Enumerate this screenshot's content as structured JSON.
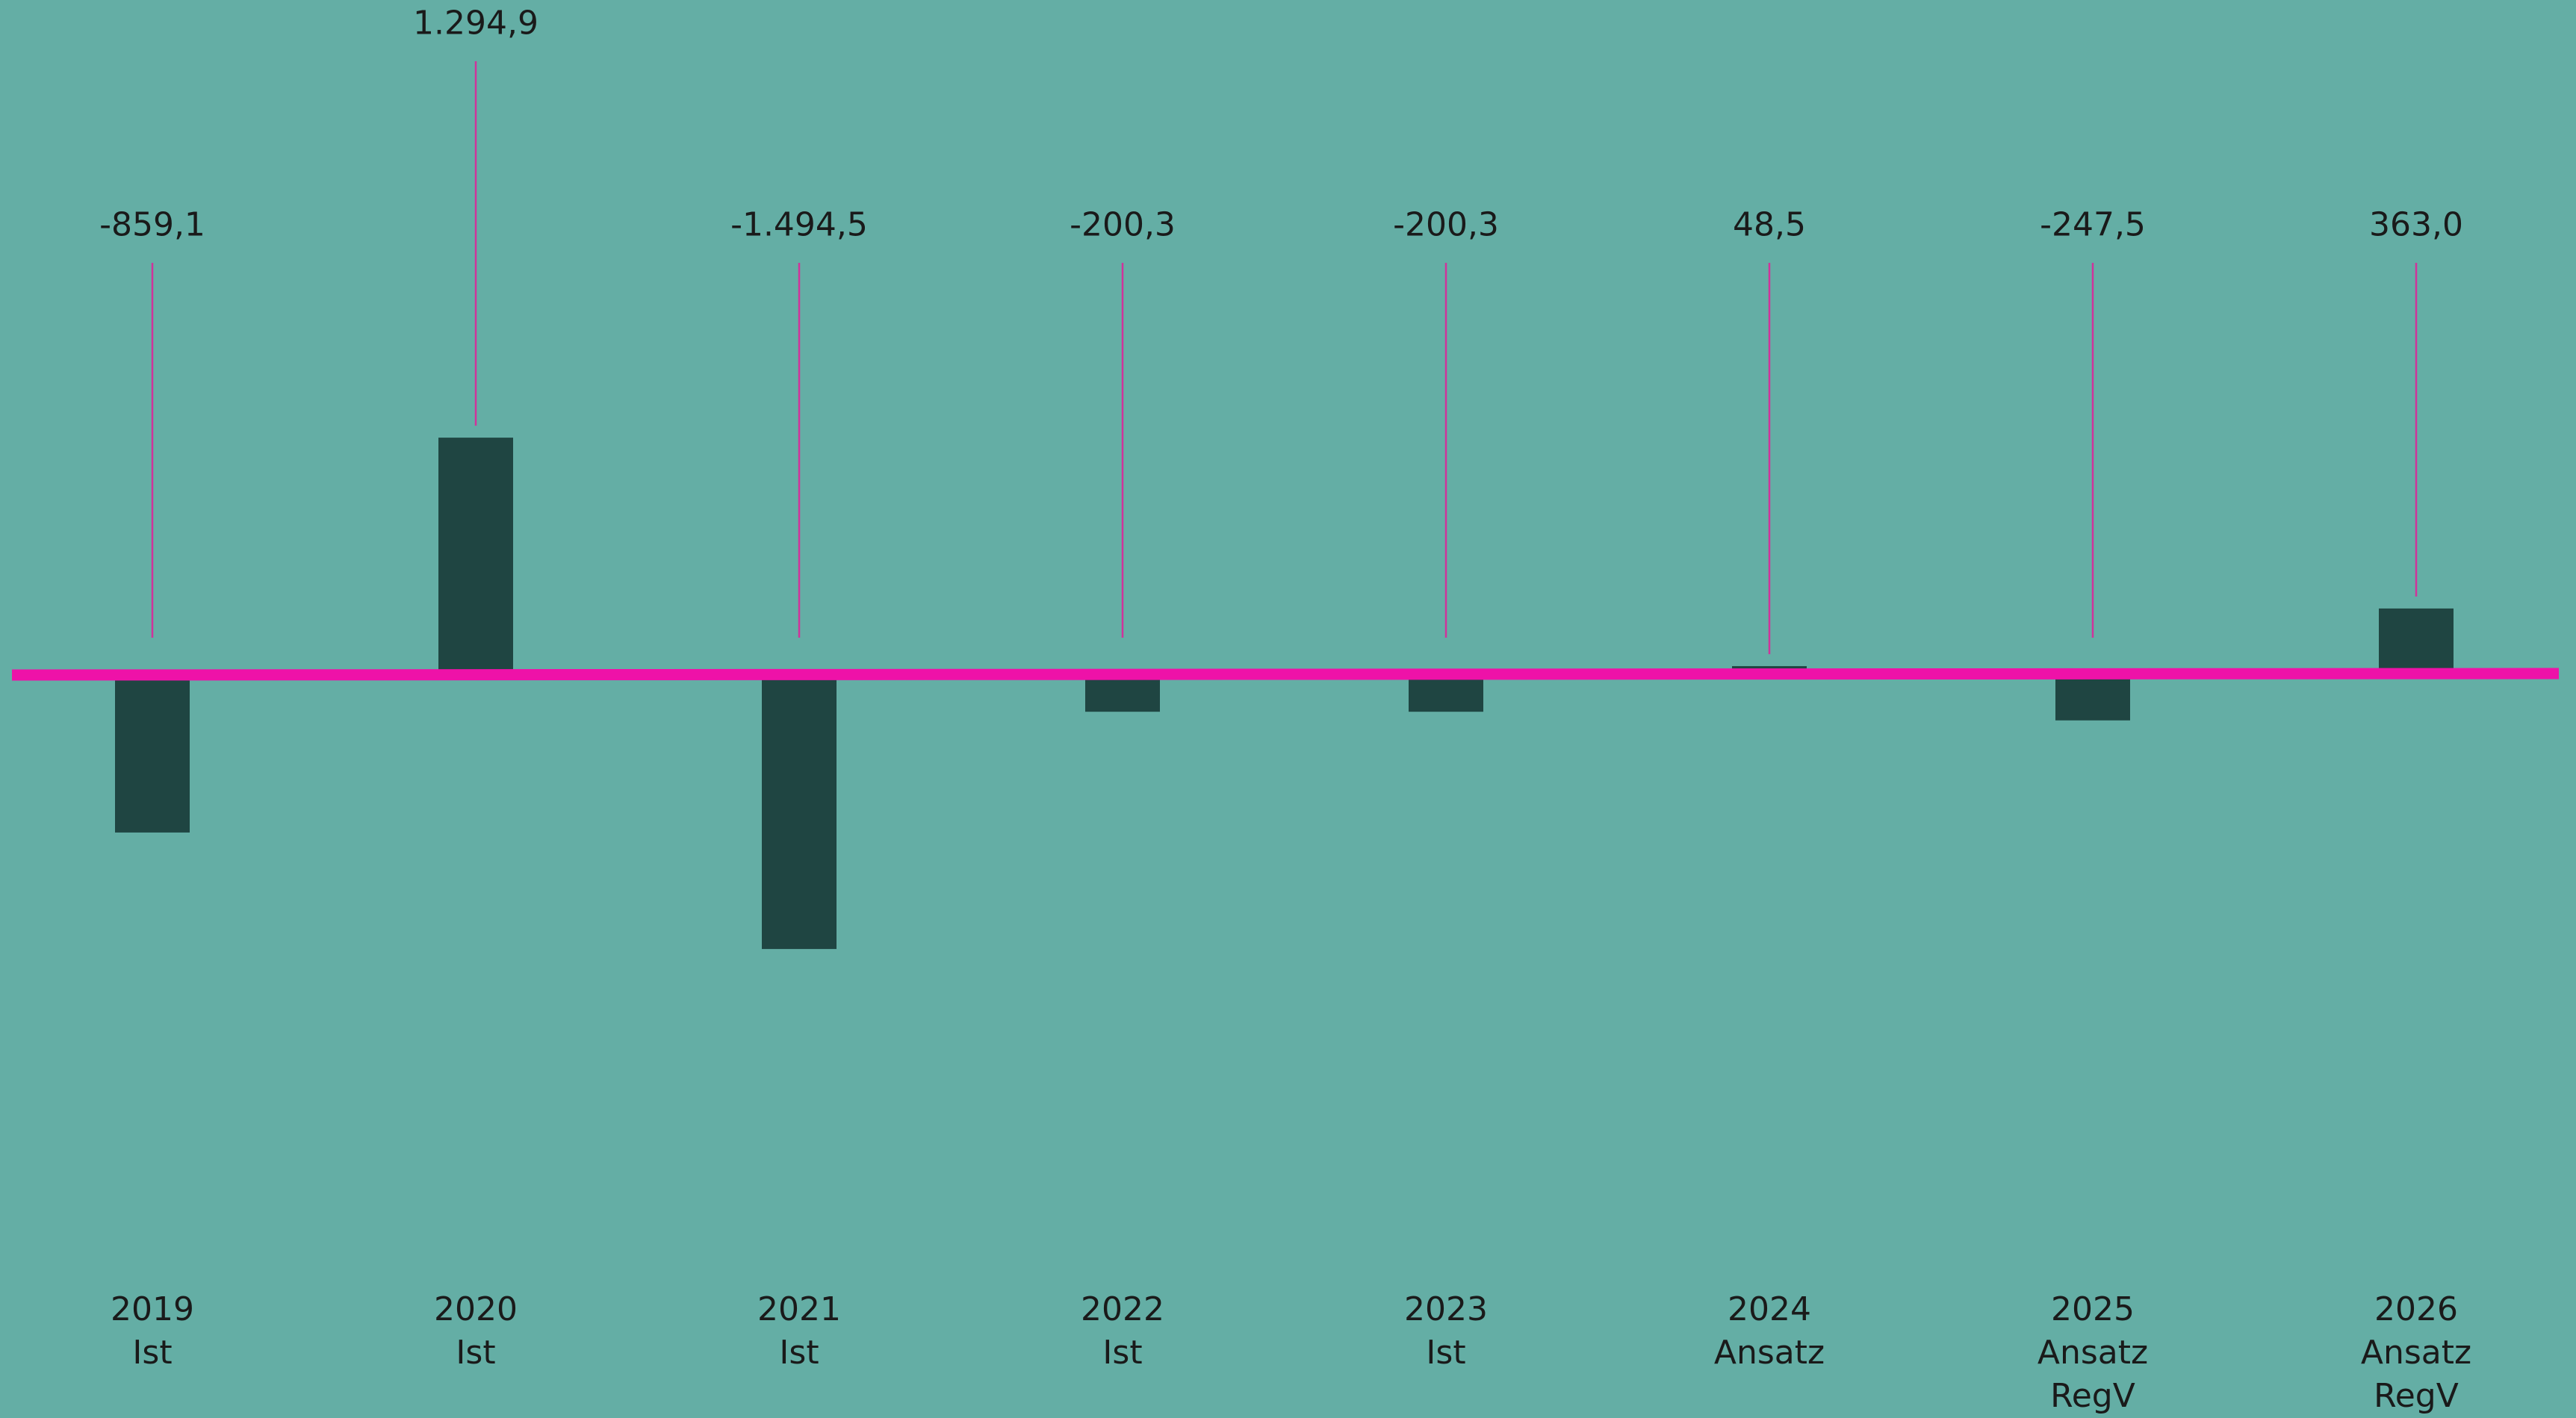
{
  "chart_data": {
    "type": "bar",
    "categories": [
      [
        "2019",
        "Ist"
      ],
      [
        "2020",
        "Ist"
      ],
      [
        "2021",
        "Ist"
      ],
      [
        "2022",
        "Ist"
      ],
      [
        "2023",
        "Ist"
      ],
      [
        "2024",
        "Ansatz"
      ],
      [
        "2025",
        "Ansatz",
        "RegV"
      ],
      [
        "2026",
        "Ansatz",
        "RegV"
      ]
    ],
    "values": [
      -859.1,
      1294.9,
      -1494.5,
      -200.3,
      -200.3,
      48.5,
      -247.5,
      363.0
    ],
    "value_labels": [
      "-859,1",
      "1.294,9",
      "-1.494,5",
      "-200,3",
      "-200,3",
      "48,5",
      "-247,5",
      "363,0"
    ],
    "title": "",
    "xlabel": "",
    "ylabel": "",
    "grid": false,
    "legend": "none",
    "colors": {
      "background": "#64aea5",
      "bar": "#1f4542",
      "baseline": "#ee12a8",
      "leader": "#d0339b",
      "text": "#1a1a1a"
    }
  }
}
